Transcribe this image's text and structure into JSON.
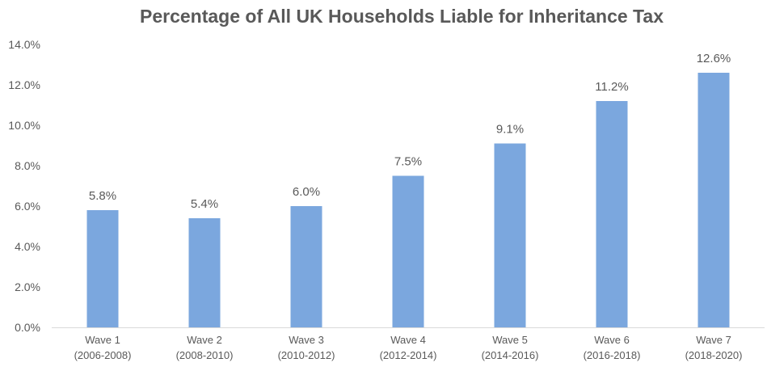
{
  "chart_data": {
    "type": "bar",
    "title": "Percentage of All UK Households Liable for Inheritance Tax",
    "xlabel": "",
    "ylabel": "",
    "categories": [
      [
        "Wave 1",
        "(2006-2008)"
      ],
      [
        "Wave 2",
        "(2008-2010)"
      ],
      [
        "Wave 3",
        "(2010-2012)"
      ],
      [
        "Wave 4",
        "(2012-2014)"
      ],
      [
        "Wave 5",
        "(2014-2016)"
      ],
      [
        "Wave 6",
        "(2016-2018)"
      ],
      [
        "Wave 7",
        "(2018-2020)"
      ]
    ],
    "values": [
      5.8,
      5.4,
      6.0,
      7.5,
      9.1,
      11.2,
      12.6
    ],
    "value_labels": [
      "5.8%",
      "5.4%",
      "6.0%",
      "7.5%",
      "9.1%",
      "11.2%",
      "12.6%"
    ],
    "ylim": [
      0,
      14
    ],
    "y_ticks": [
      0,
      2,
      4,
      6,
      8,
      10,
      12,
      14
    ],
    "y_tick_labels": [
      "0.0%",
      "2.0%",
      "4.0%",
      "6.0%",
      "8.0%",
      "10.0%",
      "12.0%",
      "14.0%"
    ],
    "grid": false,
    "legend": "none",
    "bar_color": "#7ba7de",
    "axis_color": "#d9d9d9",
    "text_color": "#595959"
  }
}
